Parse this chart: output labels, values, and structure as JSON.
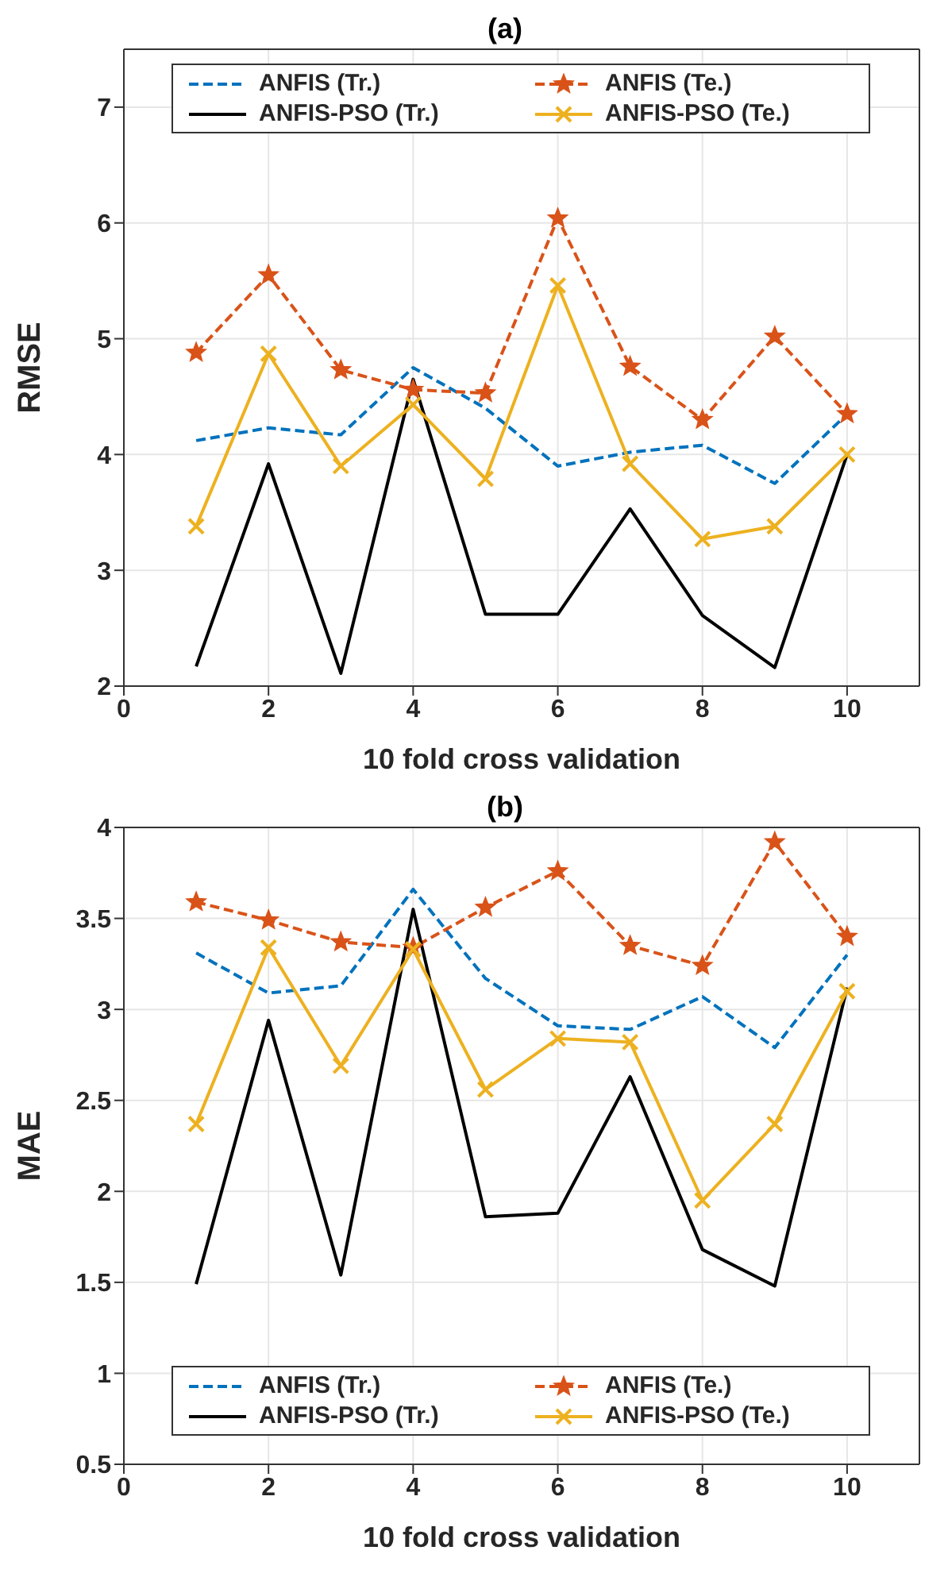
{
  "chart_data": [
    {
      "type": "line",
      "title": "(a)",
      "xlabel": "10 fold cross validation",
      "ylabel": "RMSE",
      "x": [
        1,
        2,
        3,
        4,
        5,
        6,
        7,
        8,
        9,
        10
      ],
      "xlim": [
        0,
        11
      ],
      "xticks": [
        0,
        2,
        4,
        6,
        8,
        10
      ],
      "ylim": [
        2,
        7.5
      ],
      "yticks": [
        2,
        3,
        4,
        5,
        6,
        7
      ],
      "grid": true,
      "legend": "top",
      "series": [
        {
          "name": "ANFIS (Tr.)",
          "color": "#0072bd",
          "line_style": "dashed",
          "marker": "none",
          "values": [
            4.12,
            4.23,
            4.17,
            4.75,
            4.4,
            3.9,
            4.02,
            4.08,
            3.75,
            4.35
          ]
        },
        {
          "name": "ANFIS (Te.)",
          "color": "#d95319",
          "line_style": "dashed",
          "marker": "star",
          "values": [
            4.88,
            5.55,
            4.73,
            4.56,
            4.53,
            6.04,
            4.76,
            4.3,
            5.02,
            4.35
          ]
        },
        {
          "name": "ANFIS-PSO (Tr.)",
          "color": "#000000",
          "line_style": "solid",
          "marker": "none",
          "values": [
            2.17,
            3.92,
            2.11,
            4.65,
            2.62,
            2.62,
            3.53,
            2.61,
            2.16,
            4.0
          ]
        },
        {
          "name": "ANFIS-PSO (Te.)",
          "color": "#edb120",
          "line_style": "solid",
          "marker": "cross",
          "values": [
            3.38,
            4.87,
            3.9,
            4.43,
            3.79,
            5.46,
            3.92,
            3.27,
            3.38,
            4.0
          ]
        }
      ]
    },
    {
      "type": "line",
      "title": "(b)",
      "xlabel": "10 fold cross validation",
      "ylabel": "MAE",
      "x": [
        1,
        2,
        3,
        4,
        5,
        6,
        7,
        8,
        9,
        10
      ],
      "xlim": [
        0,
        11
      ],
      "xticks": [
        0,
        2,
        4,
        6,
        8,
        10
      ],
      "ylim": [
        0.5,
        4
      ],
      "yticks": [
        0.5,
        1,
        1.5,
        2,
        2.5,
        3,
        3.5,
        4
      ],
      "grid": true,
      "legend": "bottom",
      "series": [
        {
          "name": "ANFIS (Tr.)",
          "color": "#0072bd",
          "line_style": "dashed",
          "marker": "none",
          "values": [
            3.31,
            3.09,
            3.13,
            3.66,
            3.17,
            2.91,
            2.89,
            3.07,
            2.79,
            3.3
          ]
        },
        {
          "name": "ANFIS (Te.)",
          "color": "#d95319",
          "line_style": "dashed",
          "marker": "star",
          "values": [
            3.59,
            3.49,
            3.37,
            3.34,
            3.56,
            3.76,
            3.35,
            3.24,
            3.92,
            3.4
          ]
        },
        {
          "name": "ANFIS-PSO (Tr.)",
          "color": "#000000",
          "line_style": "solid",
          "marker": "none",
          "values": [
            1.49,
            2.94,
            1.54,
            3.55,
            1.86,
            1.88,
            2.63,
            1.68,
            1.48,
            3.12
          ]
        },
        {
          "name": "ANFIS-PSO (Te.)",
          "color": "#edb120",
          "line_style": "solid",
          "marker": "cross",
          "values": [
            2.37,
            3.34,
            2.69,
            3.33,
            2.56,
            2.84,
            2.82,
            1.95,
            2.37,
            3.1
          ]
        }
      ]
    }
  ]
}
